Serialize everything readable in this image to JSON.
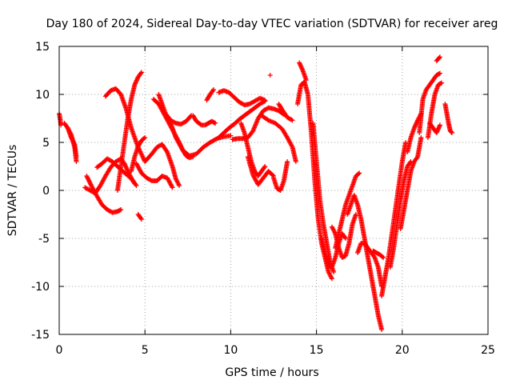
{
  "chart_data": {
    "type": "scatter",
    "title": "Day 180 of 2024, Sidereal Day-to-day VTEC variation (SDTVAR) for receiver areg",
    "xlabel": "GPS time / hours",
    "ylabel": "SDTVAR / TECUs",
    "xlim": [
      0,
      25
    ],
    "ylim": [
      -15,
      15
    ],
    "xticks": [
      "0",
      "5",
      "10",
      "15",
      "20",
      "25"
    ],
    "yticks": [
      "-15",
      "-10",
      "-5",
      "0",
      "5",
      "10",
      "15"
    ],
    "grid": true,
    "marker": "plus",
    "color": "#ff0000",
    "series": [
      {
        "x": [
          0.0,
          0.05,
          0.1
        ],
        "y": [
          8.0,
          7.5,
          6.8
        ]
      },
      {
        "x": [
          0.3,
          0.5,
          0.7,
          0.9,
          1.0
        ],
        "y": [
          7.0,
          6.5,
          5.5,
          4.8,
          3.5
        ]
      },
      {
        "x": [
          0.5,
          0.7,
          0.9,
          1.0
        ],
        "y": [
          6.5,
          5.8,
          4.5,
          3.0
        ]
      },
      {
        "x": [
          2.7,
          3.0,
          3.3,
          3.6,
          3.9,
          4.2,
          4.6,
          5.0,
          5.4,
          5.7,
          6.0,
          6.3,
          6.6,
          6.8,
          7.0
        ],
        "y": [
          9.8,
          10.4,
          10.6,
          10.0,
          8.5,
          6.5,
          4.5,
          3.0,
          3.8,
          4.5,
          4.8,
          4.0,
          2.5,
          1.2,
          0.5
        ]
      },
      {
        "x": [
          2.2,
          2.5,
          2.8,
          3.1,
          3.4,
          3.7,
          3.9,
          4.1,
          4.3,
          4.5
        ],
        "y": [
          2.4,
          2.8,
          3.3,
          3.0,
          2.5,
          2.0,
          1.7,
          1.4,
          1.0,
          0.5
        ]
      },
      {
        "x": [
          1.6,
          1.9,
          2.2,
          2.5,
          2.8,
          3.1,
          3.4,
          3.6
        ],
        "y": [
          1.5,
          0.4,
          -0.6,
          -1.5,
          -2.0,
          -2.3,
          -2.2,
          -2.0
        ]
      },
      {
        "x": [
          1.5,
          1.8,
          2.1,
          2.4,
          2.7,
          3.0,
          3.3,
          3.6,
          3.8,
          4.0,
          4.2,
          4.4
        ],
        "y": [
          0.3,
          0.0,
          -0.3,
          0.5,
          1.5,
          2.4,
          3.0,
          3.3,
          2.8,
          2.0,
          1.3,
          0.7
        ]
      },
      {
        "x": [
          3.4,
          3.6,
          3.8,
          4.0,
          4.2,
          4.4,
          4.6,
          4.8
        ],
        "y": [
          0.0,
          2.5,
          5.0,
          7.5,
          9.5,
          11.0,
          11.8,
          12.3
        ]
      },
      {
        "x": [
          4.6,
          4.8
        ],
        "y": [
          -2.5,
          -3.0
        ]
      },
      {
        "x": [
          4.5,
          4.8,
          5.1,
          5.4,
          5.7,
          6.0,
          6.3,
          6.6
        ],
        "y": [
          2.8,
          1.8,
          1.3,
          1.0,
          1.0,
          1.5,
          1.3,
          0.3
        ]
      },
      {
        "x": [
          4.2,
          4.4,
          4.6,
          4.8,
          5.0
        ],
        "y": [
          2.0,
          3.5,
          4.6,
          5.2,
          5.5
        ]
      },
      {
        "x": [
          5.5,
          5.8,
          6.1,
          6.4,
          6.7,
          7.0,
          7.2,
          7.4,
          7.6,
          7.8
        ],
        "y": [
          9.5,
          9.0,
          8.0,
          7.0,
          6.0,
          5.0,
          4.2,
          3.6,
          3.4,
          3.5
        ]
      },
      {
        "x": [
          5.8,
          6.0,
          6.2,
          6.5,
          6.8,
          7.1,
          7.4,
          7.7
        ],
        "y": [
          10.0,
          9.0,
          8.0,
          7.3,
          7.0,
          6.9,
          7.2,
          7.8
        ]
      },
      {
        "x": [
          7.8,
          8.0,
          8.3,
          8.5,
          8.7,
          8.9,
          9.1
        ],
        "y": [
          7.8,
          7.2,
          6.8,
          6.8,
          7.0,
          7.2,
          7.0
        ]
      },
      {
        "x": [
          6.5,
          6.8,
          7.2,
          7.6,
          8.0,
          8.4,
          8.8,
          9.2,
          9.6,
          10.0
        ],
        "y": [
          7.0,
          5.5,
          4.2,
          3.6,
          3.8,
          4.5,
          5.0,
          5.4,
          5.6,
          5.7
        ]
      },
      {
        "x": [
          8.6,
          8.8,
          9.0
        ],
        "y": [
          9.4,
          10.0,
          10.5
        ]
      },
      {
        "x": [
          9.3,
          9.6,
          9.9,
          10.2,
          10.5,
          10.8,
          11.1,
          11.4,
          11.7,
          12.0
        ],
        "y": [
          10.2,
          10.4,
          10.2,
          9.7,
          9.2,
          8.9,
          9.0,
          9.3,
          9.6,
          9.4
        ]
      },
      {
        "x": [
          9.3,
          9.6,
          9.9,
          10.2,
          10.5,
          10.8,
          11.1,
          11.4,
          11.7,
          12.0
        ],
        "y": [
          5.5,
          6.0,
          6.5,
          6.9,
          7.4,
          7.8,
          8.2,
          8.6,
          9.0,
          9.3
        ]
      },
      {
        "x": [
          10.1,
          10.4,
          10.7,
          11.0,
          11.3,
          11.6,
          11.9,
          12.2,
          12.5,
          12.8,
          13.1
        ],
        "y": [
          5.3,
          5.4,
          5.4,
          5.5,
          6.2,
          7.5,
          8.3,
          8.6,
          8.5,
          8.3,
          7.9
        ]
      },
      {
        "x": [
          10.6,
          10.8,
          11.0,
          11.2,
          11.4,
          11.6,
          11.8,
          12.0
        ],
        "y": [
          7.0,
          6.0,
          4.5,
          3.0,
          2.0,
          1.5,
          2.0,
          2.5
        ]
      },
      {
        "x": [
          11.0,
          11.3,
          11.6,
          11.9,
          12.2,
          12.5
        ],
        "y": [
          3.5,
          1.6,
          0.6,
          1.3,
          2.0,
          1.5
        ]
      },
      {
        "x": [
          11.8,
          12.2,
          12.6,
          13.0,
          13.3,
          13.6,
          13.8
        ],
        "y": [
          7.8,
          7.3,
          7.0,
          6.4,
          5.5,
          4.5,
          3.0
        ]
      },
      {
        "x": [
          12.5,
          12.7,
          12.9,
          13.1,
          13.3
        ],
        "y": [
          1.3,
          0.2,
          0.0,
          1.0,
          3.0
        ]
      },
      {
        "x": [
          12.8,
          13.0,
          13.3,
          13.6
        ],
        "y": [
          9.0,
          8.4,
          7.6,
          7.3
        ]
      },
      {
        "x": [
          12.3
        ],
        "y": [
          12.0
        ]
      },
      {
        "x": [
          14.0,
          14.2,
          14.4
        ],
        "y": [
          13.3,
          12.5,
          11.5
        ]
      },
      {
        "x": [
          13.9,
          14.1,
          14.3,
          14.5,
          14.7,
          14.9,
          15.1,
          15.3,
          15.5,
          15.7,
          15.9
        ],
        "y": [
          9.0,
          11.0,
          11.3,
          10.0,
          6.0,
          1.0,
          -3.0,
          -5.5,
          -7.0,
          -8.5,
          -9.2
        ]
      },
      {
        "x": [
          14.8,
          15.0,
          15.2,
          15.4,
          15.6,
          15.8,
          16.0
        ],
        "y": [
          7.0,
          3.0,
          -1.0,
          -3.5,
          -5.5,
          -7.5,
          -8.5
        ]
      },
      {
        "x": [
          15.3,
          15.5,
          15.7,
          15.9,
          16.1,
          16.3,
          16.5,
          16.7
        ],
        "y": [
          -5.0,
          -6.5,
          -7.8,
          -8.0,
          -7.0,
          -5.5,
          -4.5,
          -5.0
        ]
      },
      {
        "x": [
          15.9,
          16.1,
          16.3,
          16.5,
          16.7,
          16.9,
          17.1,
          17.3
        ],
        "y": [
          -3.8,
          -4.5,
          -6.0,
          -7.0,
          -6.8,
          -5.5,
          -3.5,
          -2.5
        ]
      },
      {
        "x": [
          16.1,
          16.3,
          16.5,
          16.7,
          16.9,
          17.1,
          17.3,
          17.5
        ],
        "y": [
          -6.0,
          -4.5,
          -3.0,
          -1.5,
          -0.5,
          0.5,
          1.5,
          1.8
        ]
      },
      {
        "x": [
          16.8,
          17.0,
          17.2,
          17.4,
          17.6,
          17.8,
          18.0,
          18.2,
          18.4,
          18.6,
          18.8
        ],
        "y": [
          -2.5,
          -1.5,
          -0.5,
          -1.5,
          -3.0,
          -5.0,
          -7.0,
          -9.0,
          -11.0,
          -13.0,
          -14.5
        ]
      },
      {
        "x": [
          17.4,
          17.6,
          17.8,
          18.0,
          18.2,
          18.4,
          18.6,
          18.8
        ],
        "y": [
          -6.5,
          -5.5,
          -5.5,
          -6.0,
          -6.5,
          -7.0,
          -8.0,
          -10.0
        ]
      },
      {
        "x": [
          18.3,
          18.5,
          18.7,
          18.9
        ],
        "y": [
          -6.3,
          -6.5,
          -6.7,
          -7.0
        ]
      },
      {
        "x": [
          18.8,
          19.0,
          19.2,
          19.4,
          19.6,
          19.8,
          20.0,
          20.2
        ],
        "y": [
          -11.0,
          -9.0,
          -7.0,
          -4.5,
          -2.0,
          0.5,
          3.0,
          5.0
        ]
      },
      {
        "x": [
          19.3,
          19.5,
          19.7,
          19.9,
          20.1,
          20.3,
          20.5
        ],
        "y": [
          -8.0,
          -6.0,
          -3.5,
          -1.0,
          1.0,
          2.5,
          3.0
        ]
      },
      {
        "x": [
          19.9,
          20.1,
          20.3,
          20.5,
          20.7,
          20.9,
          21.1
        ],
        "y": [
          -4.0,
          -2.0,
          0.0,
          2.0,
          3.0,
          3.5,
          5.5
        ]
      },
      {
        "x": [
          20.3,
          20.5,
          20.7,
          20.9,
          21.1
        ],
        "y": [
          4.0,
          5.5,
          6.5,
          7.3,
          8.0
        ]
      },
      {
        "x": [
          21.0,
          21.2,
          21.4,
          21.6,
          21.8,
          22.0,
          22.2
        ],
        "y": [
          6.0,
          9.5,
          10.5,
          11.0,
          11.5,
          12.0,
          12.2
        ]
      },
      {
        "x": [
          21.5,
          21.7,
          21.9,
          22.1,
          22.3
        ],
        "y": [
          5.5,
          8.0,
          10.0,
          11.0,
          11.2
        ]
      },
      {
        "x": [
          22.0,
          22.2
        ],
        "y": [
          13.5,
          13.9
        ]
      },
      {
        "x": [
          21.6,
          21.8,
          22.0,
          22.2
        ],
        "y": [
          7.0,
          6.5,
          6.0,
          6.8
        ]
      },
      {
        "x": [
          22.5,
          22.6,
          22.7,
          22.8,
          22.9
        ],
        "y": [
          9.0,
          8.0,
          7.0,
          6.2,
          6.0
        ]
      }
    ]
  }
}
